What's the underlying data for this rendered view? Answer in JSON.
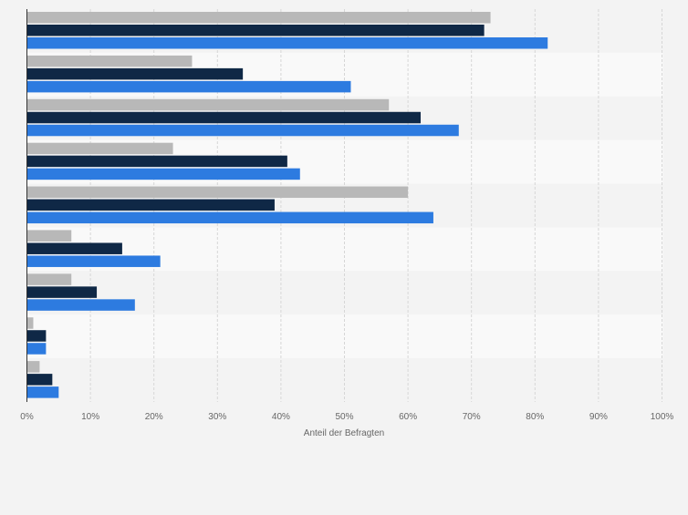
{
  "chart_data": {
    "type": "bar",
    "orientation": "horizontal",
    "categories": [
      "",
      "",
      "",
      "",
      "",
      "",
      "",
      "",
      ""
    ],
    "series": [
      {
        "values": [
          73,
          26,
          57,
          23,
          60,
          7,
          7,
          1,
          2
        ]
      },
      {
        "values": [
          72,
          34,
          62,
          41,
          39,
          15,
          11,
          3,
          4
        ]
      },
      {
        "values": [
          82,
          51,
          68,
          43,
          64,
          21,
          17,
          3,
          5
        ]
      }
    ],
    "xlabel": "Anteil der Befragten",
    "ylabel": "",
    "xlim": [
      0,
      100
    ],
    "x_ticks": [
      "0%",
      "10%",
      "20%",
      "30%",
      "40%",
      "50%",
      "60%",
      "70%",
      "80%",
      "90%",
      "100%"
    ],
    "grid": true,
    "legend": "none"
  },
  "colors": {
    "series": [
      "#b8b8b8",
      "#0f2846",
      "#2d7be0"
    ],
    "band_dark": "#f3f3f3",
    "band_light": "#f9f9f9",
    "grid": "#d6d6d6",
    "axis": "#333333",
    "text": "#666666"
  }
}
